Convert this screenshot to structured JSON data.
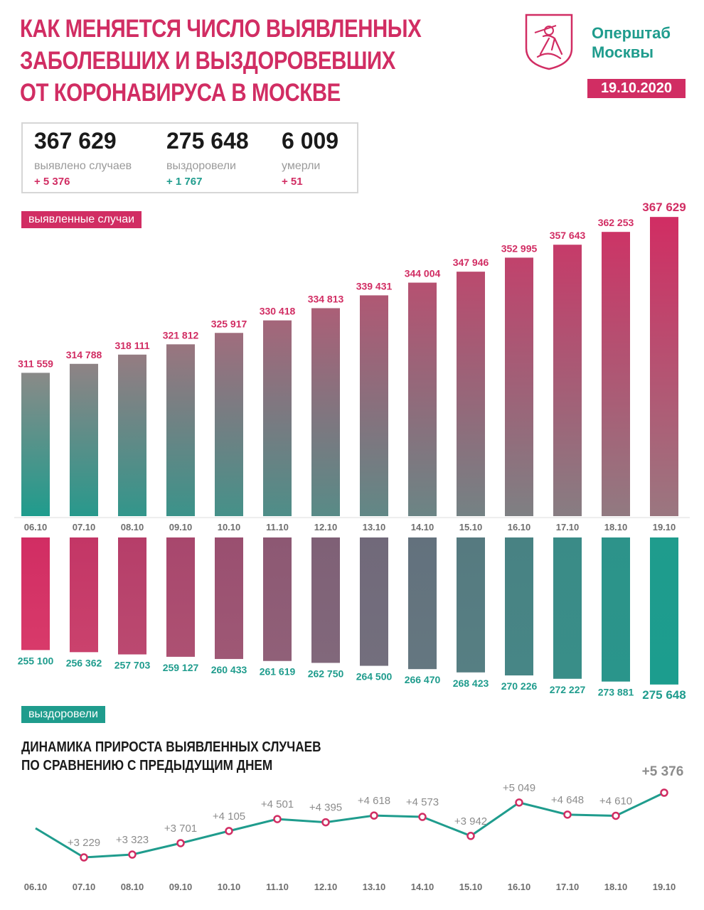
{
  "header": {
    "title_lines": [
      "КАК МЕНЯЕТСЯ ЧИСЛО ВЫЯВЛЕННЫХ",
      "ЗАБОЛЕВШИХ И ВЫЗДОРОВЕВШИХ",
      "ОТ КОРОНАВИРУСА В МОСКВЕ"
    ],
    "org_lines": [
      "Оперштаб",
      "Москвы"
    ],
    "date": "19.10.2020",
    "logo_icon": "moscow-coat-of-arms-icon"
  },
  "summary": {
    "cases": {
      "value": "367 629",
      "label": "выявлено случаев",
      "delta": "+ 5 376"
    },
    "recovered": {
      "value": "275 648",
      "label": "выздоровели",
      "delta": "+ 1 767"
    },
    "deaths": {
      "value": "6 009",
      "label": "умерли",
      "delta": "+ 51"
    }
  },
  "labels": {
    "cases_tag": "выявленные случаи",
    "recovered_tag": "выздоровели",
    "dynamics_lines": [
      "ДИНАМИКА ПРИРОСТА ВЫЯВЛЕННЫХ СЛУЧАЕВ",
      "ПО СРАВНЕНИЮ С ПРЕДЫДУЩИМ ДНЕМ"
    ]
  },
  "colors": {
    "pink": "#d12d63",
    "teal": "#1f9c8d",
    "grey_text": "#8c8c8c"
  },
  "chart_data": [
    {
      "type": "bar",
      "categories": [
        "06.10",
        "07.10",
        "08.10",
        "09.10",
        "10.10",
        "11.10",
        "12.10",
        "13.10",
        "14.10",
        "15.10",
        "16.10",
        "17.10",
        "18.10",
        "19.10"
      ],
      "values": [
        311559,
        314788,
        318111,
        321812,
        325917,
        330418,
        334813,
        339431,
        344004,
        347946,
        352995,
        357643,
        362253,
        367629
      ],
      "labels": [
        "311 559",
        "314 788",
        "318 111",
        "321 812",
        "325 917",
        "330 418",
        "334 813",
        "339 431",
        "344 004",
        "347 946",
        "352 995",
        "357 643",
        "362 253",
        "367 629"
      ],
      "legend": "выявленные случаи"
    },
    {
      "type": "bar",
      "categories": [
        "06.10",
        "07.10",
        "08.10",
        "09.10",
        "10.10",
        "11.10",
        "12.10",
        "13.10",
        "14.10",
        "15.10",
        "16.10",
        "17.10",
        "18.10",
        "19.10"
      ],
      "values": [
        255100,
        256362,
        257703,
        259127,
        260433,
        261619,
        262750,
        264500,
        266470,
        268423,
        270226,
        272227,
        273881,
        275648
      ],
      "labels": [
        "255 100",
        "256 362",
        "257 703",
        "259 127",
        "260 433",
        "261 619",
        "262 750",
        "264 500",
        "266 470",
        "268 423",
        "270 226",
        "272 227",
        "273 881",
        "275 648"
      ],
      "legend": "выздоровели"
    },
    {
      "type": "line",
      "categories": [
        "06.10",
        "07.10",
        "08.10",
        "09.10",
        "10.10",
        "11.10",
        "12.10",
        "13.10",
        "14.10",
        "15.10",
        "16.10",
        "17.10",
        "18.10",
        "19.10"
      ],
      "values": [
        null,
        3229,
        3323,
        3701,
        4105,
        4501,
        4395,
        4618,
        4573,
        3942,
        5049,
        4648,
        4610,
        5376
      ],
      "labels": [
        "",
        "+3 229",
        "+3 323",
        "+3 701",
        "+4 105",
        "+4 501",
        "+4 395",
        "+4 618",
        "+4 573",
        "+3 942",
        "+5 049",
        "+4 648",
        "+4 610",
        "+5 376"
      ]
    }
  ]
}
